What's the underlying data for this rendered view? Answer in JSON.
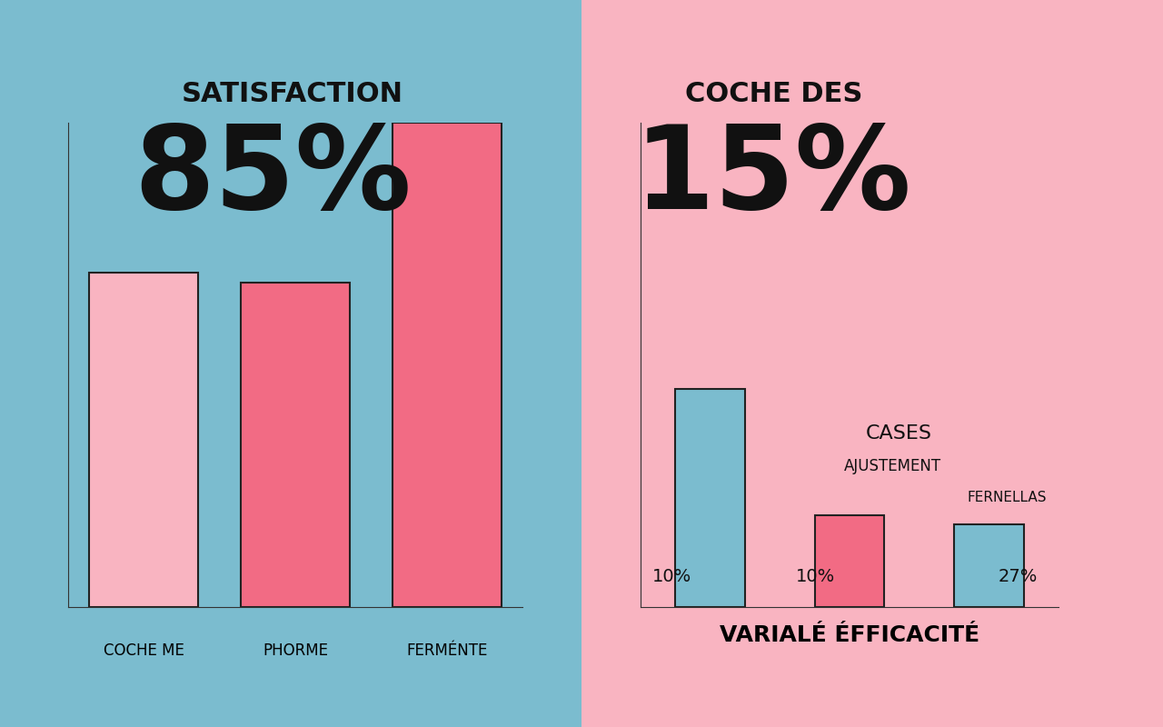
{
  "chart_data": [
    {
      "type": "bar",
      "title": "SATISFACTION",
      "subtitle": "85%",
      "categories": [
        "COCHE ME",
        "PHORME",
        "FERMÉNTE"
      ],
      "values": [
        69,
        67,
        100
      ],
      "colors": [
        "#f9b4c1",
        "#f26b84",
        "#f26b84"
      ],
      "ylim": [
        0,
        100
      ],
      "yticks": [
        0,
        100
      ],
      "grid": false,
      "tick_labels": "x"
    },
    {
      "type": "bar",
      "title": "COCHE DES",
      "subtitle": "15%",
      "categories": [
        null,
        null,
        null
      ],
      "values": [
        45,
        19,
        17
      ],
      "colors": [
        "#7bbccf",
        "#f26b84",
        "#7bbccf"
      ],
      "x_label": "VARIALÉ ÉFFICACITÉ",
      "annotations": [
        "CASES",
        "AJUSTEMENT",
        "FERNELLAS",
        "10%",
        "10%",
        "27%"
      ],
      "ylim": [
        0,
        100
      ],
      "yticks": [
        0,
        100
      ],
      "grid": false,
      "tick_labels": false
    }
  ]
}
